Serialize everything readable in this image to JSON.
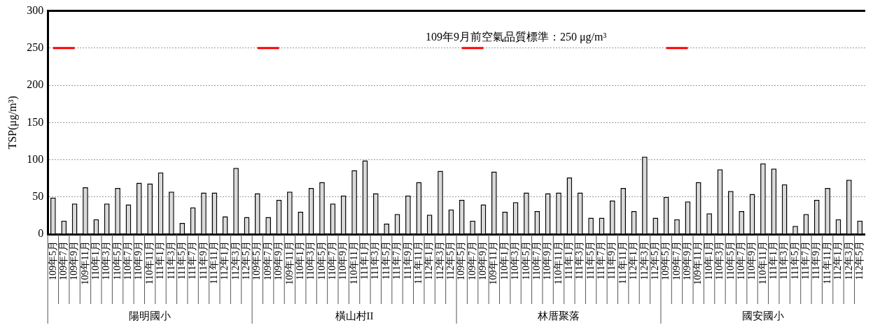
{
  "chart_data": {
    "type": "bar",
    "ylabel": "TSP(μg/m³)",
    "categories": [
      "109年5月",
      "109年7月",
      "109年9月",
      "109年11月",
      "110年1月",
      "110年3月",
      "110年5月",
      "110年7月",
      "110年9月",
      "110年11月",
      "111年1月",
      "111年3月",
      "111年5月",
      "111年7月",
      "111年9月",
      "111年11月",
      "112年1月",
      "112年3月",
      "112年5月",
      "109年5月",
      "109年7月",
      "109年9月",
      "109年11月",
      "110年1月",
      "110年3月",
      "110年5月",
      "110年7月",
      "110年9月",
      "110年11月",
      "111年1月",
      "111年3月",
      "111年5月",
      "111年7月",
      "111年9月",
      "111年11月",
      "112年1月",
      "112年3月",
      "112年5月",
      "109年5月",
      "109年7月",
      "109年9月",
      "109年11月",
      "110年1月",
      "110年3月",
      "110年5月",
      "110年7月",
      "110年9月",
      "110年11月",
      "111年1月",
      "111年3月",
      "111年5月",
      "111年7月",
      "111年9月",
      "111年11月",
      "112年1月",
      "112年3月",
      "112年5月",
      "109年5月",
      "109年7月",
      "109年9月",
      "109年11月",
      "110年1月",
      "110年3月",
      "110年5月",
      "110年7月",
      "110年9月",
      "110年11月",
      "111年1月",
      "111年3月",
      "111年5月",
      "111年7月",
      "111年9月",
      "111年11月",
      "112年1月",
      "112年3月",
      "112年5月"
    ],
    "series": [
      {
        "color": "#d9d9d9",
        "values": [
          49,
          18,
          41,
          63,
          20,
          41,
          62,
          40,
          69,
          68,
          83,
          57,
          15,
          36,
          56,
          56,
          24,
          89,
          23,
          55,
          23,
          46,
          57,
          30,
          62,
          70,
          41,
          52,
          86,
          99,
          55,
          14,
          27,
          52,
          70,
          26,
          85,
          33,
          46,
          18,
          40,
          84,
          30,
          43,
          56,
          31,
          55,
          56,
          76,
          56,
          22,
          22,
          45,
          62,
          31,
          104,
          22,
          50,
          20,
          44,
          70,
          28,
          87,
          58,
          31,
          54,
          95,
          88,
          67,
          11,
          27,
          46,
          62,
          20,
          73,
          18
        ]
      },
      {
        "type": "line",
        "color": "#ff0000",
        "marker": "none",
        "values": [
          250,
          250,
          250,
          null,
          null,
          null,
          null,
          null,
          null,
          null,
          null,
          null,
          null,
          null,
          null,
          null,
          null,
          null,
          null,
          250,
          250,
          250,
          null,
          null,
          null,
          null,
          null,
          null,
          null,
          null,
          null,
          null,
          null,
          null,
          null,
          null,
          null,
          null,
          250,
          250,
          250,
          null,
          null,
          null,
          null,
          null,
          null,
          null,
          null,
          null,
          null,
          null,
          null,
          null,
          null,
          null,
          null,
          250,
          250,
          250,
          null,
          null,
          null,
          null,
          null,
          null,
          null,
          null,
          null,
          null,
          null,
          null,
          null,
          null,
          null,
          null
        ]
      }
    ],
    "ylim": [
      0,
      300
    ],
    "yticks": [
      0,
      50,
      100,
      150,
      200,
      250,
      300
    ],
    "grid": "y",
    "legend": false,
    "annotations": [
      "109年9月前空氣品質標準：250 μg/m³",
      "陽明國小",
      "橫山村II",
      "林厝聚落",
      "國安國小"
    ]
  }
}
